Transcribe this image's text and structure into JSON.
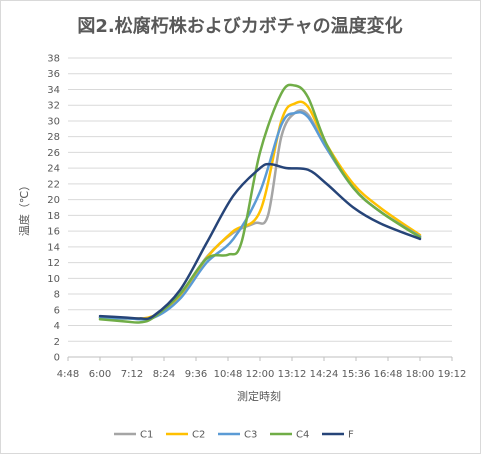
{
  "chart_data": {
    "type": "line",
    "title": "図2.松腐朽株およびカボチャの温度変化",
    "xlabel": "測定時刻",
    "ylabel": "温度（℃）",
    "xlim": [
      4.8,
      19.2
    ],
    "ylim": [
      0,
      38
    ],
    "xticks": [
      {
        "v": 4.8,
        "label": "4:48"
      },
      {
        "v": 6.0,
        "label": "6:00"
      },
      {
        "v": 7.2,
        "label": "7:12"
      },
      {
        "v": 8.4,
        "label": "8:24"
      },
      {
        "v": 9.6,
        "label": "9:36"
      },
      {
        "v": 10.8,
        "label": "10:48"
      },
      {
        "v": 12.0,
        "label": "12:00"
      },
      {
        "v": 13.2,
        "label": "13:12"
      },
      {
        "v": 14.4,
        "label": "14:24"
      },
      {
        "v": 15.6,
        "label": "15:36"
      },
      {
        "v": 16.8,
        "label": "16:48"
      },
      {
        "v": 18.0,
        "label": "18:00"
      },
      {
        "v": 19.2,
        "label": "19:12"
      }
    ],
    "yticks": [
      0,
      2,
      4,
      6,
      8,
      10,
      12,
      14,
      16,
      18,
      20,
      22,
      24,
      26,
      28,
      30,
      32,
      34,
      36,
      38
    ],
    "grid": "horizontal",
    "legend": "bottom",
    "series": [
      {
        "name": "C1",
        "color": "#a5a5a5",
        "points": [
          [
            6.0,
            5.0
          ],
          [
            7.0,
            4.9
          ],
          [
            8.0,
            5.1
          ],
          [
            9.0,
            7.8
          ],
          [
            10.0,
            12.7
          ],
          [
            11.0,
            15.8
          ],
          [
            11.8,
            17.0
          ],
          [
            12.3,
            18.0
          ],
          [
            12.8,
            28.0
          ],
          [
            13.3,
            31.0
          ],
          [
            13.8,
            30.8
          ],
          [
            14.5,
            26.5
          ],
          [
            15.5,
            21.5
          ],
          [
            16.5,
            18.5
          ],
          [
            18.0,
            15.3
          ]
        ]
      },
      {
        "name": "C2",
        "color": "#ffc000",
        "points": [
          [
            6.0,
            5.0
          ],
          [
            7.0,
            4.9
          ],
          [
            8.0,
            5.2
          ],
          [
            9.0,
            7.6
          ],
          [
            10.0,
            12.6
          ],
          [
            11.0,
            16.0
          ],
          [
            12.0,
            18.5
          ],
          [
            12.8,
            30.0
          ],
          [
            13.3,
            32.2
          ],
          [
            13.8,
            31.8
          ],
          [
            14.5,
            27.0
          ],
          [
            15.5,
            22.0
          ],
          [
            16.5,
            19.0
          ],
          [
            18.0,
            15.5
          ]
        ]
      },
      {
        "name": "C3",
        "color": "#5b9bd5",
        "points": [
          [
            6.0,
            5.0
          ],
          [
            7.0,
            4.9
          ],
          [
            8.0,
            5.0
          ],
          [
            9.0,
            7.4
          ],
          [
            10.0,
            12.0
          ],
          [
            11.0,
            15.0
          ],
          [
            12.0,
            21.0
          ],
          [
            12.8,
            29.5
          ],
          [
            13.3,
            31.0
          ],
          [
            13.8,
            30.5
          ],
          [
            14.5,
            26.5
          ],
          [
            15.5,
            21.5
          ],
          [
            16.5,
            18.5
          ],
          [
            18.0,
            15.3
          ]
        ]
      },
      {
        "name": "C4",
        "color": "#70ad47",
        "points": [
          [
            6.0,
            4.8
          ],
          [
            7.0,
            4.5
          ],
          [
            7.5,
            4.4
          ],
          [
            8.0,
            5.0
          ],
          [
            9.0,
            8.0
          ],
          [
            10.0,
            12.5
          ],
          [
            10.8,
            13.0
          ],
          [
            11.3,
            14.5
          ],
          [
            12.0,
            26.0
          ],
          [
            12.8,
            33.5
          ],
          [
            13.3,
            34.5
          ],
          [
            13.8,
            33.0
          ],
          [
            14.5,
            27.0
          ],
          [
            15.5,
            21.5
          ],
          [
            16.5,
            18.5
          ],
          [
            18.0,
            15.2
          ]
        ]
      },
      {
        "name": "F",
        "color": "#264478",
        "points": [
          [
            6.0,
            5.2
          ],
          [
            7.0,
            5.0
          ],
          [
            7.5,
            4.9
          ],
          [
            8.0,
            5.2
          ],
          [
            9.0,
            8.5
          ],
          [
            10.0,
            14.5
          ],
          [
            11.0,
            20.5
          ],
          [
            12.0,
            24.0
          ],
          [
            12.4,
            24.5
          ],
          [
            13.0,
            24.0
          ],
          [
            13.8,
            23.8
          ],
          [
            14.5,
            22.0
          ],
          [
            15.5,
            19.0
          ],
          [
            16.5,
            17.0
          ],
          [
            18.0,
            15.0
          ]
        ]
      }
    ]
  }
}
